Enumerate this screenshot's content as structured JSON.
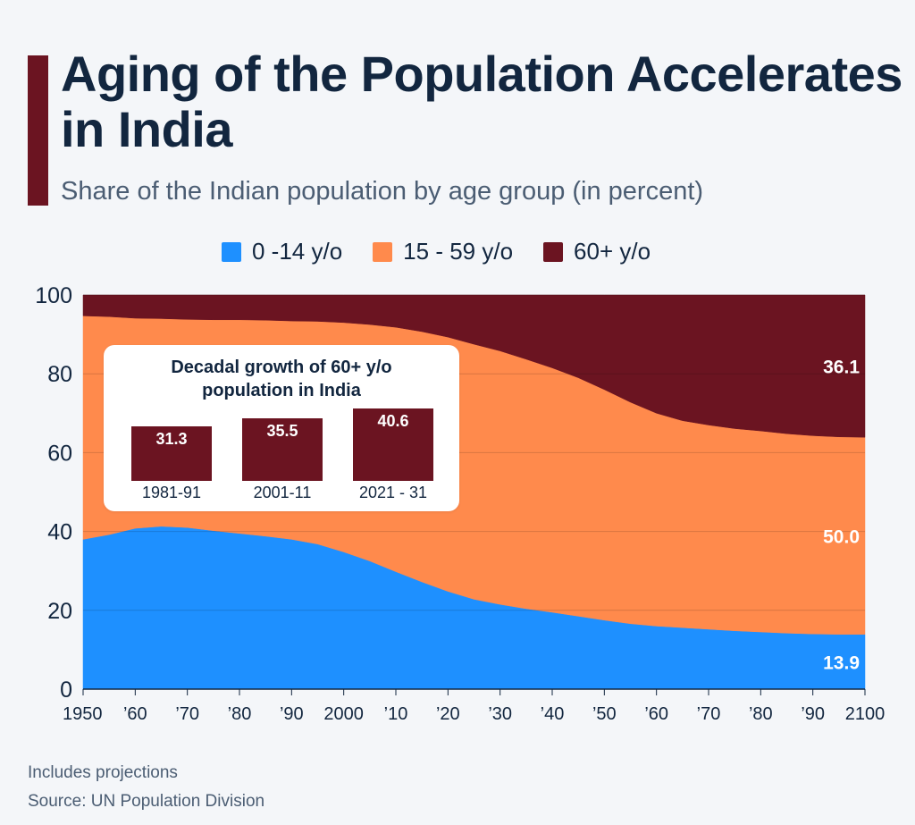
{
  "header": {
    "title": "Aging of the Population Accelerates in India",
    "subtitle": "Share of the Indian population by age group (in percent)"
  },
  "legend": [
    {
      "label": "0 -14 y/o",
      "color": "#1e90ff"
    },
    {
      "label": "15 - 59 y/o",
      "color": "#ff8a4c"
    },
    {
      "label": "60+ y/o",
      "color": "#6b1421"
    }
  ],
  "chart_data": {
    "type": "area",
    "stacked": true,
    "title": "Aging of the Population Accelerates in India",
    "subtitle": "Share of the Indian population by age group (in percent)",
    "ylim": [
      0,
      100
    ],
    "y_ticks": [
      0,
      20,
      40,
      60,
      80,
      100
    ],
    "x_ticks": [
      {
        "year": 1950,
        "label": "1950"
      },
      {
        "year": 1960,
        "label": "’60"
      },
      {
        "year": 1970,
        "label": "’70"
      },
      {
        "year": 1980,
        "label": "’80"
      },
      {
        "year": 1990,
        "label": "’90"
      },
      {
        "year": 2000,
        "label": "2000"
      },
      {
        "year": 2010,
        "label": "’10"
      },
      {
        "year": 2020,
        "label": "’20"
      },
      {
        "year": 2030,
        "label": "’30"
      },
      {
        "year": 2040,
        "label": "’40"
      },
      {
        "year": 2050,
        "label": "’50"
      },
      {
        "year": 2060,
        "label": "’60"
      },
      {
        "year": 2070,
        "label": "’70"
      },
      {
        "year": 2080,
        "label": "’80"
      },
      {
        "year": 2090,
        "label": "’90"
      },
      {
        "year": 2100,
        "label": "2100"
      }
    ],
    "x": [
      1950,
      1955,
      1960,
      1965,
      1970,
      1975,
      1980,
      1985,
      1990,
      1995,
      2000,
      2005,
      2010,
      2015,
      2020,
      2025,
      2030,
      2035,
      2040,
      2045,
      2050,
      2055,
      2060,
      2065,
      2070,
      2075,
      2080,
      2085,
      2090,
      2095,
      2100
    ],
    "series": [
      {
        "name": "0 -14 y/o",
        "color": "#1e90ff",
        "values": [
          38.0,
          39.2,
          40.8,
          41.3,
          41.0,
          40.2,
          39.5,
          38.8,
          38.0,
          36.8,
          34.8,
          32.5,
          29.8,
          27.2,
          24.8,
          22.8,
          21.5,
          20.4,
          19.5,
          18.5,
          17.5,
          16.6,
          16.0,
          15.6,
          15.2,
          14.8,
          14.5,
          14.2,
          14.0,
          13.9,
          13.9
        ]
      },
      {
        "name": "15 - 59 y/o",
        "color": "#ff8a4c",
        "values": [
          56.7,
          55.3,
          53.3,
          52.7,
          52.8,
          53.5,
          54.2,
          54.8,
          55.4,
          56.5,
          58.2,
          60.0,
          62.0,
          63.5,
          64.5,
          64.7,
          64.3,
          63.3,
          62.0,
          60.5,
          58.5,
          56.2,
          54.0,
          52.5,
          51.8,
          51.3,
          51.0,
          50.6,
          50.3,
          50.1,
          50.0
        ]
      },
      {
        "name": "60+ y/o",
        "color": "#6b1421",
        "values": [
          5.3,
          5.5,
          5.9,
          6.0,
          6.2,
          6.3,
          6.3,
          6.4,
          6.6,
          6.7,
          7.0,
          7.5,
          8.2,
          9.3,
          10.7,
          12.5,
          14.2,
          16.3,
          18.5,
          21.0,
          24.0,
          27.2,
          30.0,
          31.9,
          33.0,
          33.9,
          34.5,
          35.2,
          35.7,
          36.0,
          36.1
        ]
      }
    ],
    "end_labels": [
      "13.9",
      "50.0",
      "36.1"
    ]
  },
  "inset": {
    "title_line1": "Decadal growth of 60+ y/o",
    "title_line2": "population in India",
    "bars": [
      {
        "label": "1981-91",
        "value": 31.3,
        "value_label": "31.3"
      },
      {
        "label": "2001-11",
        "value": 35.5,
        "value_label": "35.5"
      },
      {
        "label": "2021 - 31",
        "value": 40.6,
        "value_label": "40.6"
      }
    ]
  },
  "footer": {
    "note": "Includes projections",
    "source": "Source: UN Population Division"
  }
}
